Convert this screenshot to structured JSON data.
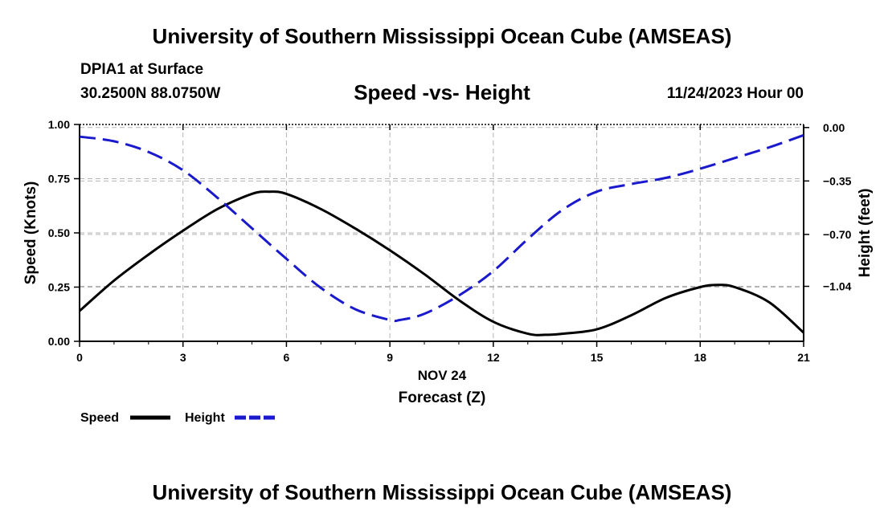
{
  "title": "University of Southern Mississippi Ocean Cube (AMSEAS)",
  "footer_title": "University of Southern Mississippi Ocean Cube (AMSEAS)",
  "station": "DPIA1 at Surface",
  "coords": "30.2500N  88.0750W",
  "subtitle": "Speed -vs- Height",
  "datetime": "11/24/2023 Hour 00",
  "chart_data": {
    "type": "line",
    "title": "Speed -vs- Height",
    "xlabel": "Forecast (Z)",
    "xlabel_date": "NOV 24",
    "ylabel": "Speed (Knots)",
    "ylabel_right": "Height (feet)",
    "xlim": [
      0,
      21
    ],
    "ylim": [
      0,
      1
    ],
    "ylim_right": [
      -1.4,
      0.02
    ],
    "x_ticks": [
      0,
      3,
      6,
      9,
      12,
      15,
      18,
      21
    ],
    "x_tick_labels": [
      "0",
      "3",
      "6",
      "9",
      "12",
      "15",
      "18",
      "21"
    ],
    "y_ticks": [
      0,
      0.25,
      0.5,
      0.75,
      1.0
    ],
    "y_tick_labels": [
      "0.00",
      "0.25",
      "0.50",
      "0.75",
      "1.00"
    ],
    "y_right_ticks": [
      0,
      -0.35,
      -0.7,
      -1.04
    ],
    "y_right_tick_labels": [
      "0.00",
      "−0.35",
      "−0.70",
      "−1.04"
    ],
    "grid": true,
    "series": [
      {
        "name": "Speed",
        "axis": "left",
        "color": "#000000",
        "dash": "solid",
        "x": [
          0,
          1,
          2,
          3,
          4,
          5,
          5.5,
          6,
          7,
          8,
          9,
          10,
          11,
          12,
          13,
          13.5,
          14,
          15,
          16,
          17,
          18,
          18.5,
          19,
          20,
          21
        ],
        "values": [
          0.14,
          0.28,
          0.4,
          0.51,
          0.61,
          0.68,
          0.69,
          0.68,
          0.61,
          0.52,
          0.42,
          0.31,
          0.19,
          0.09,
          0.035,
          0.03,
          0.035,
          0.055,
          0.12,
          0.2,
          0.25,
          0.26,
          0.25,
          0.18,
          0.04
        ]
      },
      {
        "name": "Height",
        "axis": "right",
        "color": "#1a1acc",
        "dash": "dashed",
        "x": [
          0,
          1,
          2,
          3,
          4,
          5,
          6,
          7,
          8,
          9,
          9.3,
          10,
          11,
          12,
          13,
          14,
          15,
          16,
          17,
          18,
          19,
          20,
          21
        ],
        "values": [
          -0.06,
          -0.09,
          -0.16,
          -0.28,
          -0.46,
          -0.66,
          -0.86,
          -1.05,
          -1.19,
          -1.26,
          -1.26,
          -1.22,
          -1.1,
          -0.94,
          -0.73,
          -0.54,
          -0.42,
          -0.37,
          -0.33,
          -0.27,
          -0.2,
          -0.13,
          -0.05
        ]
      }
    ],
    "legend": [
      {
        "label": "Speed",
        "color": "#000000",
        "dash": "solid"
      },
      {
        "label": "Height",
        "color": "#1a1acc",
        "dash": "dashed"
      }
    ],
    "legend_position": "bottom-left"
  }
}
